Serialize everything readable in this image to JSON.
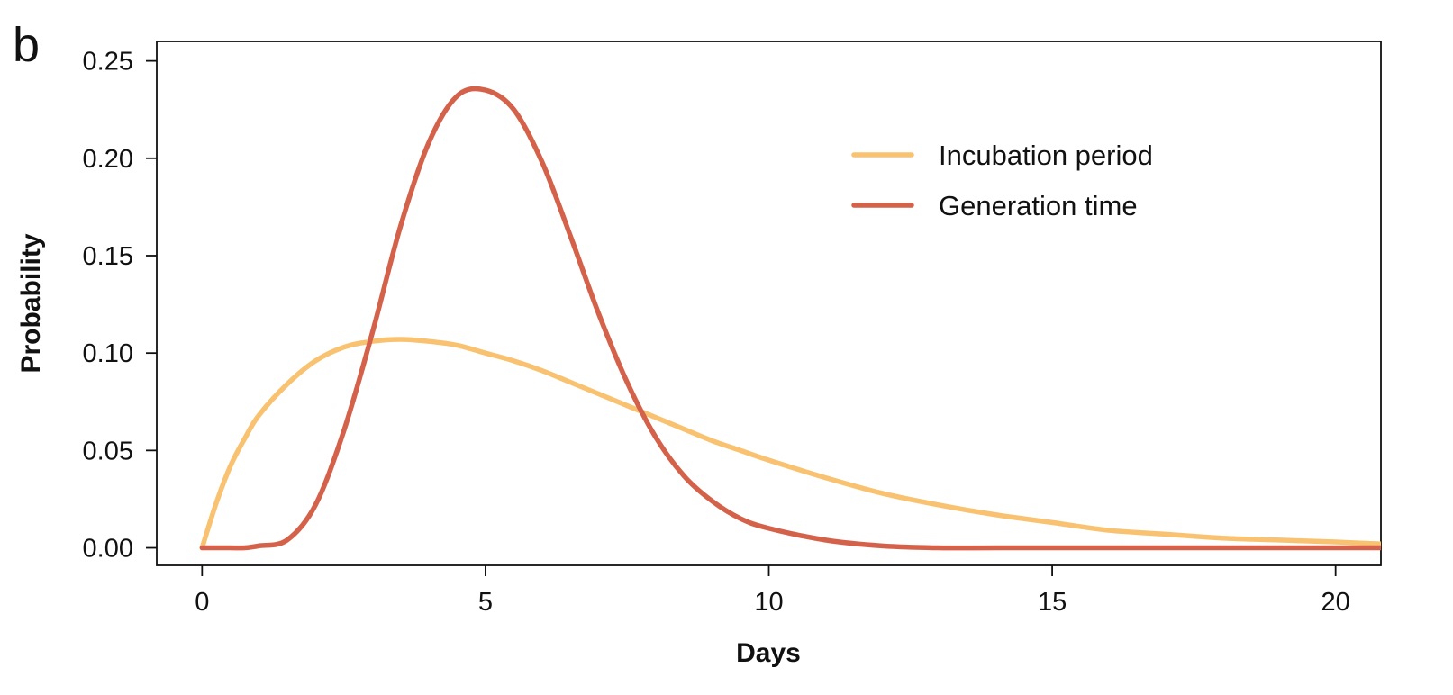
{
  "panel_label": "b",
  "chart_data": {
    "type": "line",
    "xlabel": "Days",
    "ylabel": "Probability",
    "xlim": [
      -0.8,
      20.8
    ],
    "ylim": [
      -0.009,
      0.26
    ],
    "xticks": [
      0,
      5,
      10,
      15,
      20
    ],
    "xtick_labels": [
      "0",
      "5",
      "10",
      "15",
      "20"
    ],
    "yticks": [
      0.0,
      0.05,
      0.1,
      0.15,
      0.2,
      0.25
    ],
    "ytick_labels": [
      "0.00",
      "0.05",
      "0.10",
      "0.15",
      "0.20",
      "0.25"
    ],
    "grid": false,
    "legend_position": "top-right",
    "x": [
      0,
      0.25,
      0.5,
      0.75,
      1,
      1.5,
      2,
      2.5,
      3,
      3.5,
      4,
      4.5,
      5,
      5.5,
      6,
      6.5,
      7,
      7.5,
      8,
      8.5,
      9,
      9.5,
      10,
      11,
      12,
      13,
      14,
      15,
      16,
      17,
      18,
      19,
      20,
      20.8
    ],
    "series": [
      {
        "name": "Incubation period",
        "color": "#F8C271",
        "values": [
          0.0,
          0.023,
          0.042,
          0.056,
          0.068,
          0.084,
          0.096,
          0.103,
          0.106,
          0.107,
          0.106,
          0.104,
          0.1,
          0.096,
          0.091,
          0.085,
          0.079,
          0.073,
          0.067,
          0.061,
          0.055,
          0.05,
          0.045,
          0.036,
          0.028,
          0.022,
          0.017,
          0.013,
          0.009,
          0.007,
          0.005,
          0.004,
          0.003,
          0.002
        ]
      },
      {
        "name": "Generation time",
        "color": "#D4624A",
        "values": [
          0.0,
          0.0,
          0.0,
          0.0,
          0.001,
          0.004,
          0.022,
          0.06,
          0.11,
          0.165,
          0.208,
          0.232,
          0.235,
          0.225,
          0.198,
          0.16,
          0.12,
          0.085,
          0.057,
          0.037,
          0.024,
          0.015,
          0.01,
          0.004,
          0.001,
          0.0,
          0.0,
          0.0,
          0.0,
          0.0,
          0.0,
          0.0,
          0.0,
          0.0
        ]
      }
    ]
  }
}
